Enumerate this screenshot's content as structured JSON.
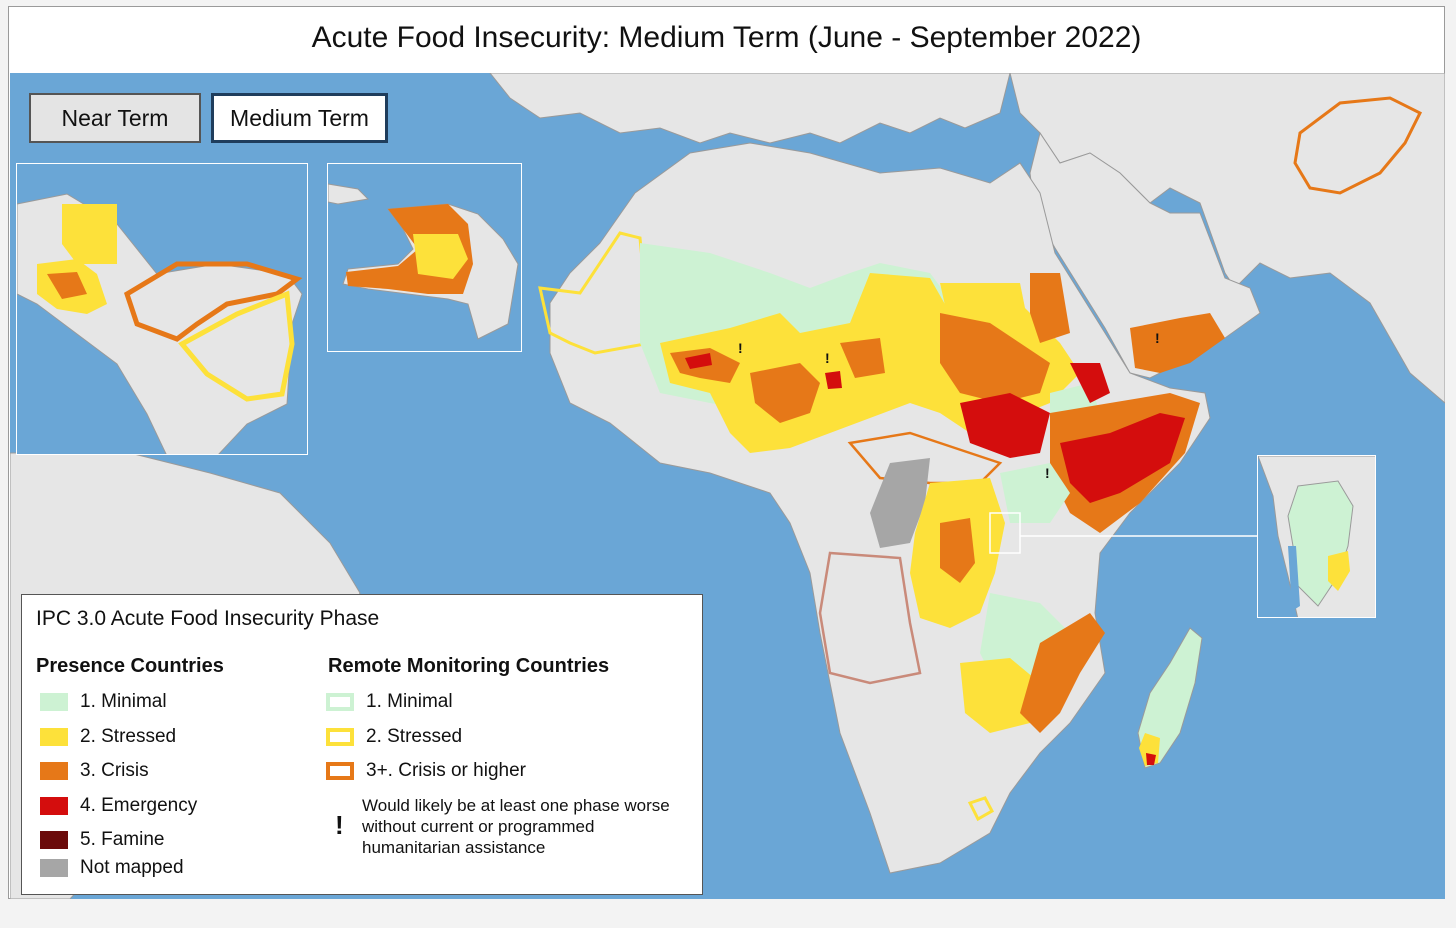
{
  "title": "Acute Food Insecurity: Medium Term (June - September 2022)",
  "tabs": [
    {
      "label": "Near Term",
      "active": false
    },
    {
      "label": "Medium Term",
      "active": true
    }
  ],
  "legend": {
    "title": "IPC 3.0 Acute Food Insecurity Phase",
    "presence_heading": "Presence Countries",
    "remote_heading": "Remote Monitoring Countries",
    "presence_items": [
      {
        "label": "1. Minimal",
        "color": "#cdf2d3"
      },
      {
        "label": "2. Stressed",
        "color": "#fde13a"
      },
      {
        "label": "3. Crisis",
        "color": "#e67818"
      },
      {
        "label": "4. Emergency",
        "color": "#d40d0d"
      },
      {
        "label": "5. Famine",
        "color": "#6b0a0a"
      },
      {
        "label": "Not mapped",
        "color": "#a6a6a6"
      }
    ],
    "remote_items": [
      {
        "label": "1. Minimal",
        "color": "#cdf2d3"
      },
      {
        "label": "2. Stressed",
        "color": "#fde13a"
      },
      {
        "label": "3+. Crisis or higher",
        "color": "#e67818"
      }
    ],
    "assistance_note": "Would likely be at least one phase worse without current or programmed humanitarian assistance",
    "assistance_symbol": "!"
  },
  "colors": {
    "water": "#6aa6d6",
    "land": "#e6e6e6",
    "border": "#9a9a9a"
  }
}
